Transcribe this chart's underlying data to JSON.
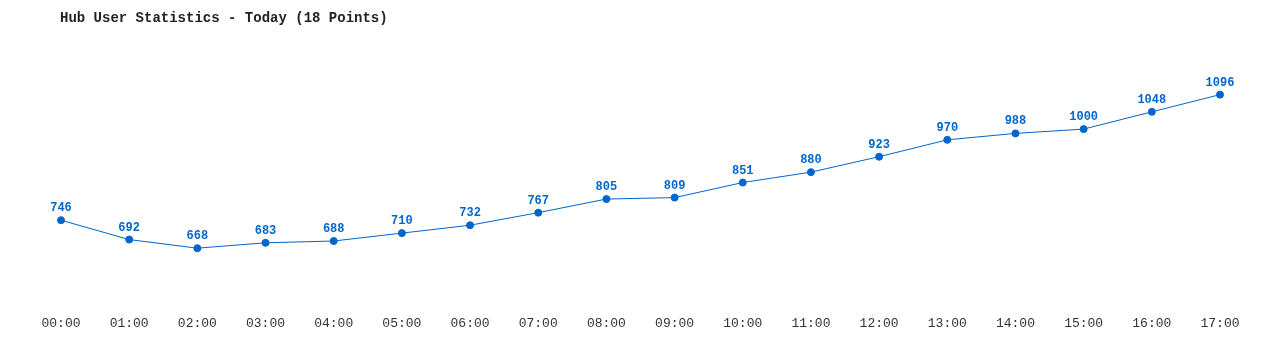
{
  "chart_data": {
    "type": "line",
    "title": "Hub User Statistics - Today (18 Points)",
    "categories": [
      "00:00",
      "01:00",
      "02:00",
      "03:00",
      "04:00",
      "05:00",
      "06:00",
      "07:00",
      "08:00",
      "09:00",
      "10:00",
      "11:00",
      "12:00",
      "13:00",
      "14:00",
      "15:00",
      "16:00",
      "17:00"
    ],
    "series": [
      {
        "color": "#0066cc",
        "values": [
          746,
          692,
          668,
          683,
          688,
          710,
          732,
          767,
          805,
          809,
          851,
          880,
          923,
          970,
          988,
          1000,
          1048,
          1096
        ]
      }
    ],
    "data_labels": true,
    "marker": "circle",
    "grid": false,
    "legend": false
  }
}
